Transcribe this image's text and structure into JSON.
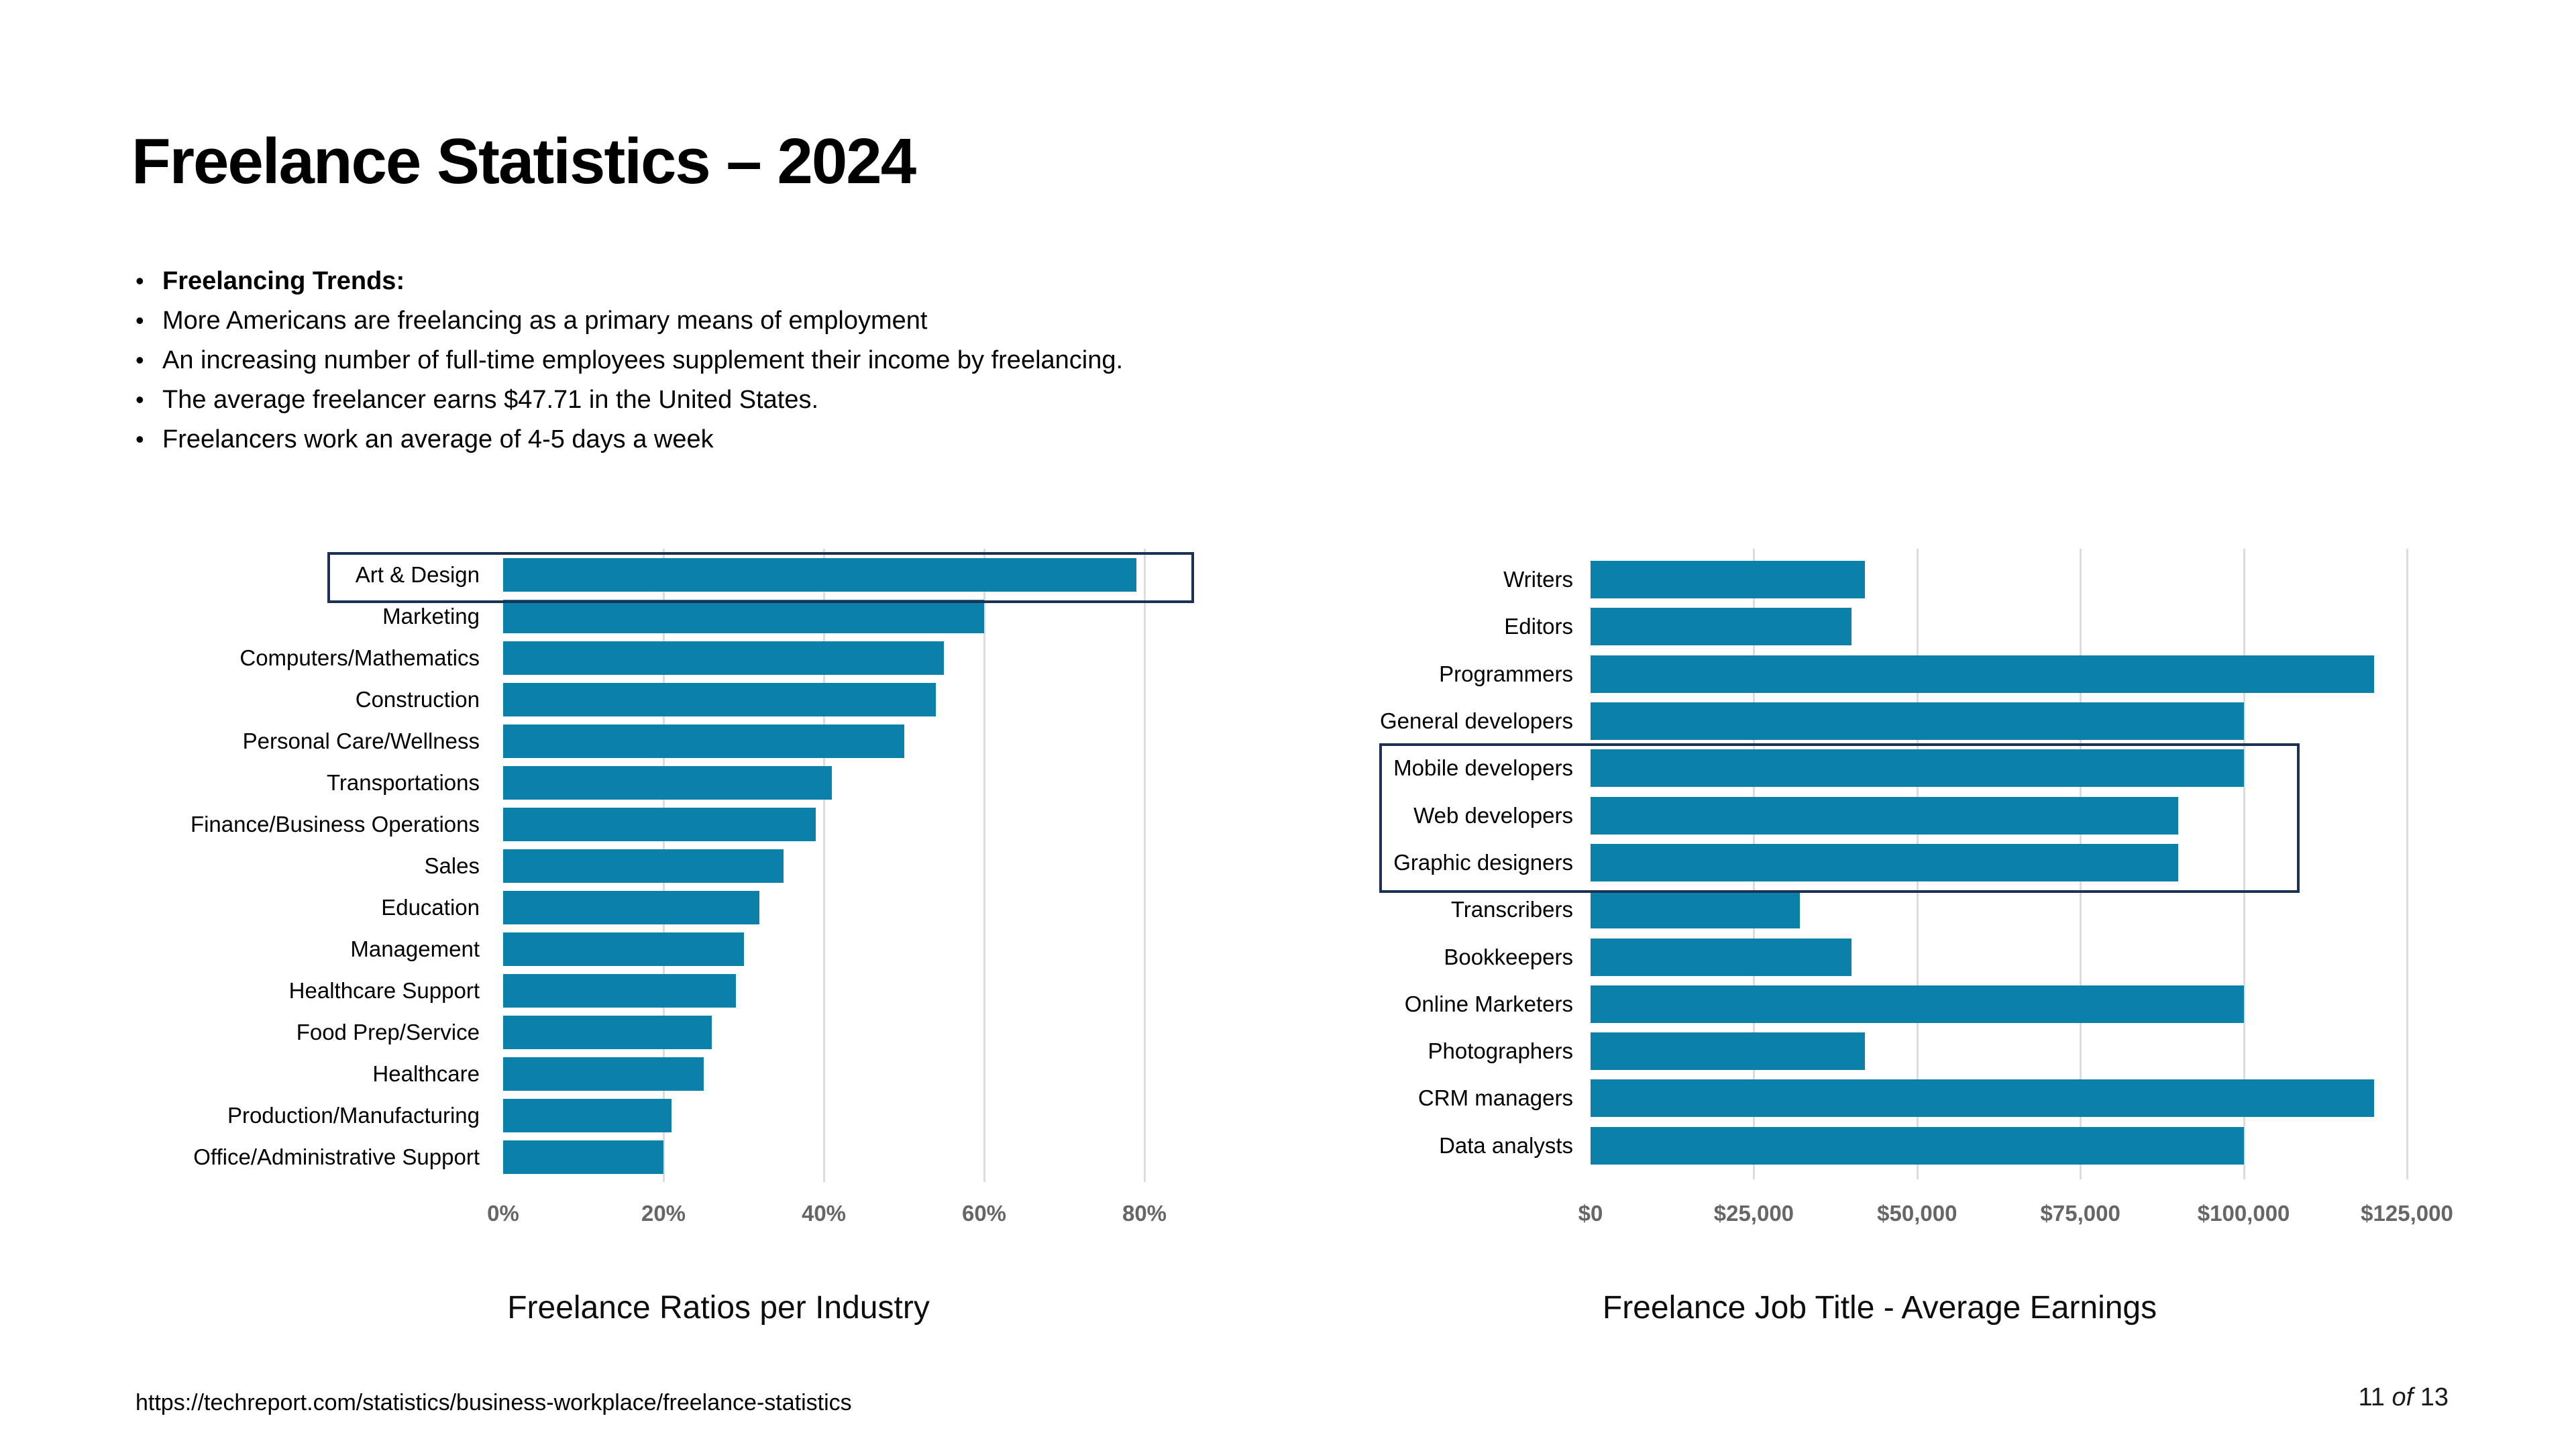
{
  "slide": {
    "title": "Freelance Statistics – 2024",
    "bullets": [
      {
        "text": "Freelancing Trends:",
        "bold": true
      },
      {
        "text": "More Americans are freelancing as a primary means of employment",
        "bold": false
      },
      {
        "text": "An increasing number of full-time employees supplement their income by freelancing.",
        "bold": false
      },
      {
        "text": "The average freelancer earns $47.71 in the United States.",
        "bold": false
      },
      {
        "text": "Freelancers work an average of 4-5 days a week",
        "bold": false
      }
    ],
    "footer": {
      "source_url": "https://techreport.com/statistics/business-workplace/freelance-statistics",
      "page_current": "11",
      "page_word": "of",
      "page_total": "13"
    }
  },
  "colors": {
    "bar_fill": "#0b80a8",
    "highlight_border": "#1b3157",
    "gridline": "#dcdcdc",
    "axis_label": "#666666"
  },
  "chart_data": [
    {
      "type": "bar",
      "orientation": "horizontal",
      "title": "Freelance Ratios per Industry",
      "categories": [
        "Art & Design",
        "Marketing",
        "Computers/Mathematics",
        "Construction",
        "Personal Care/Wellness",
        "Transportations",
        "Finance/Business Operations",
        "Sales",
        "Education",
        "Management",
        "Healthcare Support",
        "Food Prep/Service",
        "Healthcare",
        "Production/Manufacturing",
        "Office/Administrative Support"
      ],
      "values": [
        79,
        60,
        55,
        54,
        50,
        41,
        39,
        35,
        32,
        30,
        29,
        26,
        25,
        21,
        20
      ],
      "unit": "percent",
      "xlim": [
        0,
        86
      ],
      "ticks": [
        {
          "value": 0,
          "label": "0%"
        },
        {
          "value": 20,
          "label": "20%"
        },
        {
          "value": 40,
          "label": "40%"
        },
        {
          "value": 60,
          "label": "60%"
        },
        {
          "value": 80,
          "label": "80%"
        }
      ],
      "gridlines": true,
      "legend": false,
      "highlighted_categories": [
        "Art & Design"
      ]
    },
    {
      "type": "bar",
      "orientation": "horizontal",
      "title": "Freelance Job Title - Average Earnings",
      "categories": [
        "Writers",
        "Editors",
        "Programmers",
        "General developers",
        "Mobile developers",
        "Web developers",
        "Graphic designers",
        "Transcribers",
        "Bookkeepers",
        "Online Marketers",
        "Photographers",
        "CRM managers",
        "Data analysts"
      ],
      "values": [
        42000,
        40000,
        120000,
        100000,
        100000,
        90000,
        90000,
        32000,
        40000,
        100000,
        42000,
        120000,
        100000
      ],
      "unit": "USD",
      "xlim": [
        0,
        130000
      ],
      "ticks": [
        {
          "value": 0,
          "label": "$0"
        },
        {
          "value": 25000,
          "label": "$25,000"
        },
        {
          "value": 50000,
          "label": "$50,000"
        },
        {
          "value": 75000,
          "label": "$75,000"
        },
        {
          "value": 100000,
          "label": "$100,000"
        },
        {
          "value": 125000,
          "label": "$125,000"
        }
      ],
      "gridlines": true,
      "legend": false,
      "highlighted_categories": [
        "Mobile developers",
        "Web developers",
        "Graphic designers"
      ]
    }
  ]
}
